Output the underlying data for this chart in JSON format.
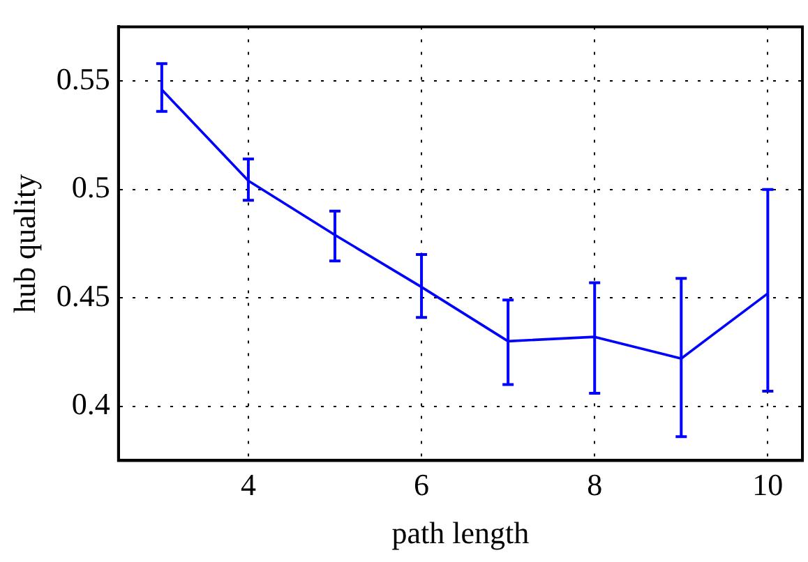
{
  "chart_data": {
    "type": "line",
    "xlabel": "path length",
    "ylabel": "hub quality",
    "x": [
      3,
      4,
      5,
      6,
      7,
      8,
      9,
      10
    ],
    "series": [
      {
        "color": "#0000ff",
        "values": [
          0.546,
          0.504,
          0.479,
          0.455,
          0.43,
          0.432,
          0.422,
          0.452
        ],
        "errors": [
          [
            0.536,
            0.558
          ],
          [
            0.495,
            0.514
          ],
          [
            0.467,
            0.49
          ],
          [
            0.441,
            0.47
          ],
          [
            0.41,
            0.449
          ],
          [
            0.406,
            0.457
          ],
          [
            0.386,
            0.459
          ],
          [
            0.407,
            0.5
          ]
        ]
      }
    ],
    "xlim": [
      2.5,
      10.4
    ],
    "xticks": [
      4,
      6,
      8,
      10
    ],
    "ylim": [
      0.375,
      0.575
    ],
    "yticks": [
      0.4,
      0.45,
      0.5,
      0.55
    ],
    "grid": true,
    "legend": false,
    "marker": "none",
    "line_style": "solid"
  }
}
